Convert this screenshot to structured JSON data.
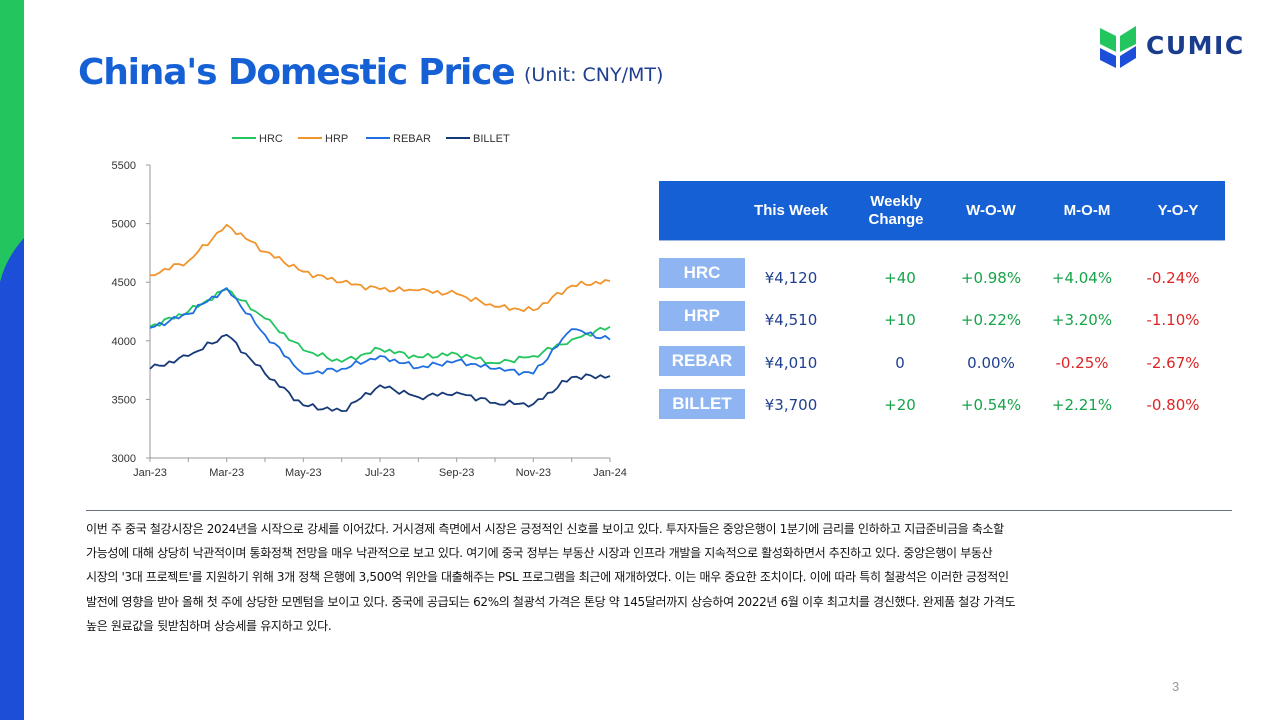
{
  "slide": {
    "title": "China's Domestic Price",
    "unit": "(Unit: CNY/MT)",
    "page_number": "3",
    "logo_text": "CUMIC",
    "colors": {
      "accent_blue": "#1660d6",
      "side_green": "#22c55e",
      "side_blue": "#1d4ed8",
      "positive": "#16a34a",
      "negative": "#dc2626"
    }
  },
  "chart_data": {
    "type": "line",
    "x": [
      "Jan-23",
      "Feb-23",
      "Mar-23",
      "Apr-23",
      "May-23",
      "Jun-23",
      "Jul-23",
      "Aug-23",
      "Sep-23",
      "Oct-23",
      "Nov-23",
      "Dec-23",
      "Jan-24"
    ],
    "x_tick_labels": [
      "Jan-23",
      "Mar-23",
      "May-23",
      "Jul-23",
      "Sep-23",
      "Nov-23",
      "Jan-24"
    ],
    "ylim": [
      3000,
      5500
    ],
    "y_ticks": [
      "3000",
      "3500",
      "4000",
      "4500",
      "5000",
      "5500"
    ],
    "legend_position": "top",
    "grid": false,
    "series": [
      {
        "name": "HRC",
        "color": "#22c55e",
        "values": [
          4120,
          4250,
          4440,
          4190,
          3920,
          3820,
          3930,
          3860,
          3890,
          3810,
          3870,
          4010,
          4120
        ]
      },
      {
        "name": "HRP",
        "color": "#f0952e",
        "values": [
          4560,
          4680,
          4990,
          4760,
          4590,
          4500,
          4440,
          4430,
          4400,
          4290,
          4260,
          4470,
          4510
        ]
      },
      {
        "name": "REBAR",
        "color": "#1f6fe0",
        "values": [
          4110,
          4230,
          4450,
          4050,
          3720,
          3760,
          3870,
          3770,
          3830,
          3760,
          3720,
          4100,
          4010
        ]
      },
      {
        "name": "BILLET",
        "color": "#163a78",
        "values": [
          3760,
          3870,
          4050,
          3720,
          3450,
          3400,
          3620,
          3520,
          3560,
          3470,
          3460,
          3690,
          3700
        ]
      }
    ]
  },
  "table": {
    "headers": [
      "This Week",
      "Weekly Change",
      "W-O-W",
      "M-O-M",
      "Y-O-Y"
    ],
    "rows": [
      {
        "label": "HRC",
        "this_week": "¥4,120",
        "weekly_change": "+40",
        "wow": "+0.98%",
        "mom": "+4.04%",
        "yoy": "-0.24%"
      },
      {
        "label": "HRP",
        "this_week": "¥4,510",
        "weekly_change": "+10",
        "wow": "+0.22%",
        "mom": "+3.20%",
        "yoy": "-1.10%"
      },
      {
        "label": "REBAR",
        "this_week": "¥4,010",
        "weekly_change": "0",
        "wow": "0.00%",
        "mom": "-0.25%",
        "yoy": "-2.67%"
      },
      {
        "label": "BILLET",
        "this_week": "¥3,700",
        "weekly_change": "+20",
        "wow": "+0.54%",
        "mom": "+2.21%",
        "yoy": "-0.80%"
      }
    ]
  },
  "commentary": {
    "lines": [
      "이번 주 중국 철강시장은 2024년을 시작으로 강세를 이어갔다. 거시경제 측면에서 시장은 긍정적인 신호를 보이고 있다. 투자자들은 중앙은행이 1분기에 금리를 인하하고 지급준비금을 축소할",
      "가능성에 대해 상당히 낙관적이며 통화정책 전망을 매우 낙관적으로 보고 있다. 여기에 중국 정부는 부동산 시장과 인프라 개발을 지속적으로 활성화하면서 추진하고 있다. 중앙은행이 부동산",
      "시장의 '3대 프로젝트'를 지원하기 위해 3개 정책 은행에 3,500억 위안을 대출해주는 PSL 프로그램을 최근에 재개하였다. 이는 매우 중요한 조치이다. 이에 따라 특히 철광석은 이러한 긍정적인",
      "발전에 영향을 받아 올해 첫 주에 상당한 모멘텀을 보이고 있다. 중국에 공급되는 62%의 철광석 가격은 톤당 약 145달러까지 상승하여 2022년 6월 이후 최고치를 경신했다. 완제품 철강 가격도",
      "높은 원료값을 뒷받침하며 상승세를 유지하고 있다."
    ]
  }
}
